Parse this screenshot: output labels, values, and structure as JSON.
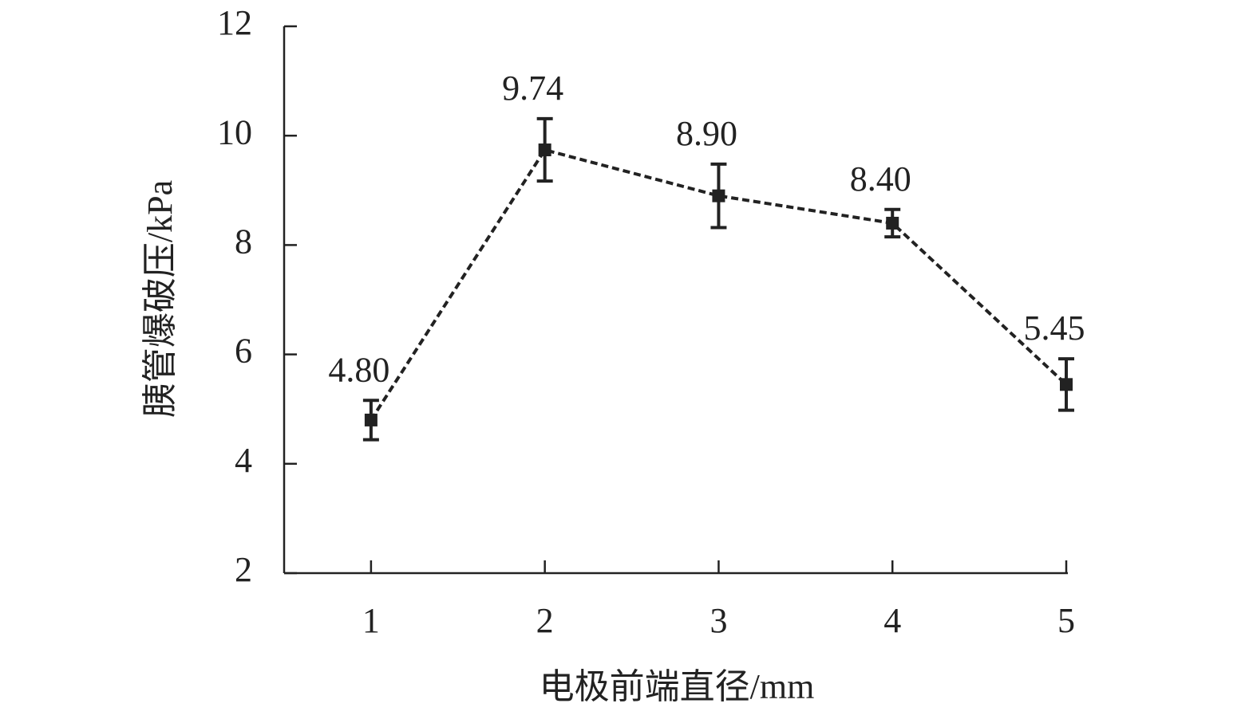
{
  "chart_data": {
    "type": "line",
    "x_label": "电极前端直径/mm",
    "y_label": "胰管爆破压/kPa",
    "x": [
      1,
      2,
      3,
      4,
      5
    ],
    "values": [
      4.8,
      9.74,
      8.9,
      8.4,
      5.45
    ],
    "value_labels": [
      "4.80",
      "9.74",
      "8.90",
      "8.40",
      "5.45"
    ],
    "errors": [
      0.36,
      0.57,
      0.58,
      0.25,
      0.47
    ],
    "color": "#222222",
    "line_style": "dashed",
    "xlim": [
      0.5,
      5
    ],
    "xticks": [
      1,
      2,
      3,
      4,
      5
    ],
    "ylim": [
      2,
      12
    ],
    "yticks": [
      2,
      4,
      6,
      8,
      10,
      12
    ]
  }
}
